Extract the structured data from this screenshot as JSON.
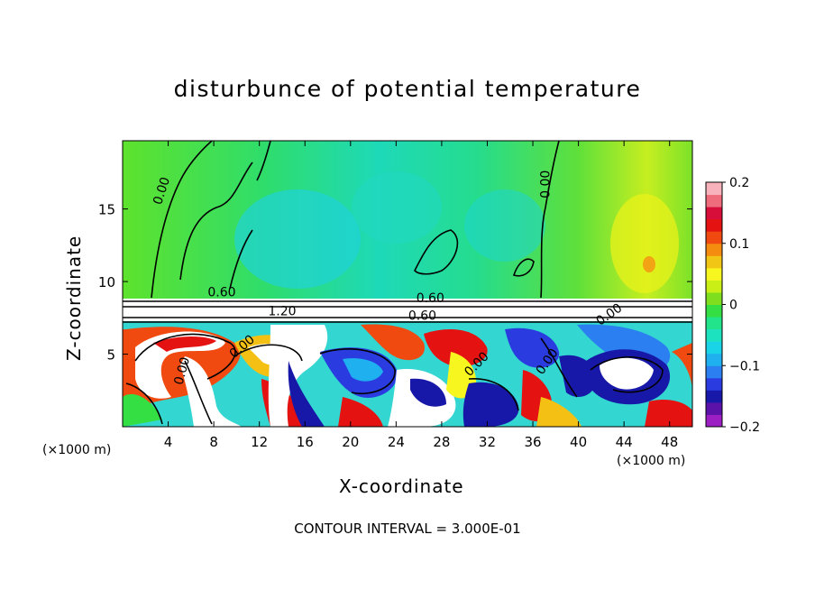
{
  "chart_data": {
    "type": "heatmap",
    "title": "disturbunce of potential temperature",
    "xlabel": "X-coordinate",
    "ylabel": "Z-coordinate",
    "x_unit": "(×1000 m)",
    "x_ticks": [
      4,
      8,
      12,
      16,
      20,
      24,
      28,
      32,
      36,
      40,
      44,
      48
    ],
    "y_ticks": [
      5,
      10,
      15
    ],
    "xlim": [
      0,
      50
    ],
    "ylim": [
      0,
      19.7
    ],
    "colorbar": {
      "ticks": [
        "0.2",
        "0.1",
        "0",
        "−0.1",
        "−0.2"
      ],
      "tick_values": [
        0.2,
        0.1,
        0,
        -0.1,
        -0.2
      ],
      "range": [
        -0.2,
        0.2
      ],
      "colors": [
        "#9b1fc2",
        "#5b12a8",
        "#1818a8",
        "#2a3ce0",
        "#2b7ff0",
        "#1fb0f0",
        "#19d3e6",
        "#1de2c0",
        "#22e48a",
        "#33df43",
        "#7fdf1f",
        "#c9ef16",
        "#f7f61f",
        "#f2c615",
        "#f48c10",
        "#f04a10",
        "#e51212",
        "#d80e3a",
        "#ef6c7c",
        "#f7b2bc"
      ]
    },
    "contour_labels": [
      {
        "text": "0.00",
        "x": 3.6,
        "z": 16.2,
        "rotate": -72
      },
      {
        "text": "0.00",
        "x": 37.3,
        "z": 16.7,
        "rotate": -90
      },
      {
        "text": "0.60",
        "x": 27.0,
        "z": 8.7,
        "rotate": 0
      },
      {
        "text": "0.60",
        "x": 26.3,
        "z": 7.5,
        "rotate": 0
      },
      {
        "text": "0.60",
        "x": 8.7,
        "z": 9.1,
        "rotate": 0
      },
      {
        "text": "1.20",
        "x": 14.0,
        "z": 7.8,
        "rotate": 0
      },
      {
        "text": "0.00",
        "x": 10.6,
        "z": 5.4,
        "rotate": -40
      },
      {
        "text": "0.00",
        "x": 31.2,
        "z": 4.2,
        "rotate": -45
      },
      {
        "text": "0.00",
        "x": 37.4,
        "z": 4.4,
        "rotate": -55
      },
      {
        "text": "0.00",
        "x": 42.8,
        "z": 7.6,
        "rotate": -35
      },
      {
        "text": "0.00",
        "x": 5.4,
        "z": 3.8,
        "rotate": -75
      }
    ],
    "contour_interval": "CONTOUR INTERVAL = 3.000E-01",
    "grid": false
  }
}
